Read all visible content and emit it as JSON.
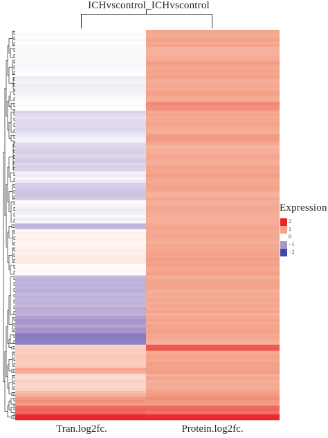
{
  "chart_data": {
    "type": "heatmap",
    "column_group_label": "ICHvscontrol_ICHvscontrol",
    "columns": [
      "Tran.log2fc.",
      "Protein.log2fc."
    ],
    "legend": {
      "title": "Expression",
      "ticks": [
        "2",
        "1",
        "0",
        "−1",
        "−2"
      ],
      "colors": [
        "#e8262a",
        "#f4a38a",
        "#ffffff",
        "#a896cc",
        "#3f4ba8"
      ],
      "range": [
        -2,
        2
      ],
      "placement": "right"
    },
    "row_dendrogram": true,
    "rows_blocks": [
      {
        "rows": 6,
        "tran": 0.0,
        "protein": 0.95
      },
      {
        "rows": 4,
        "tran": -0.08,
        "protein": 0.9
      },
      {
        "rows": 6,
        "tran": -0.02,
        "protein": 1.0
      },
      {
        "rows": 5,
        "tran": -0.12,
        "protein": 0.92
      },
      {
        "rows": 4,
        "tran": -0.05,
        "protein": 0.95
      },
      {
        "rows": 3,
        "tran": 0.0,
        "protein": 1.2
      },
      {
        "rows": 8,
        "tran": -0.35,
        "protein": 0.95
      },
      {
        "rows": 3,
        "tran": -0.2,
        "protein": 1.0
      },
      {
        "rows": 10,
        "tran": -0.4,
        "protein": 0.9
      },
      {
        "rows": 4,
        "tran": -0.15,
        "protein": 1.0
      },
      {
        "rows": 6,
        "tran": -0.5,
        "protein": 0.92
      },
      {
        "rows": 8,
        "tran": -0.1,
        "protein": 0.95
      },
      {
        "rows": 2,
        "tran": -0.7,
        "protein": 1.0
      },
      {
        "rows": 6,
        "tran": 0.15,
        "protein": 0.9
      },
      {
        "rows": 6,
        "tran": 0.25,
        "protein": 1.0
      },
      {
        "rows": 4,
        "tran": 0.05,
        "protein": 0.95
      },
      {
        "rows": 14,
        "tran": -0.75,
        "protein": 0.92
      },
      {
        "rows": 6,
        "tran": -0.95,
        "protein": 1.0
      },
      {
        "rows": 4,
        "tran": -1.3,
        "protein": 0.9
      },
      {
        "rows": 2,
        "tran": 0.5,
        "protein": 1.6
      },
      {
        "rows": 6,
        "tran": 0.6,
        "protein": 1.0
      },
      {
        "rows": 2,
        "tran": 0.9,
        "protein": 1.1
      },
      {
        "rows": 6,
        "tran": 0.45,
        "protein": 0.95
      },
      {
        "rows": 2,
        "tran": 0.8,
        "protein": 1.0
      },
      {
        "rows": 3,
        "tran": 1.1,
        "protein": 1.1
      },
      {
        "rows": 3,
        "tran": 1.5,
        "protein": 1.4
      },
      {
        "rows": 2,
        "tran": 2.0,
        "protein": 2.0
      }
    ]
  }
}
